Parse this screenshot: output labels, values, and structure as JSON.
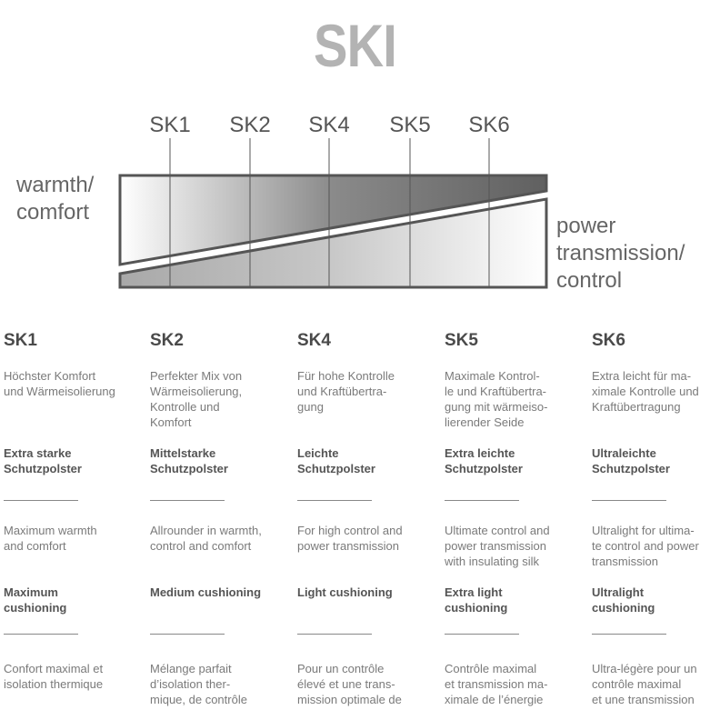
{
  "title": "SKI",
  "models": [
    "SK1",
    "SK2",
    "SK4",
    "SK5",
    "SK6"
  ],
  "left_label": "warmth/\ncomfort",
  "right_label": "power\ntransmission/\ncontrol",
  "colors": {
    "title": "#b3b3b3",
    "dark": "#666666",
    "light": "#ffffff"
  },
  "columns": [
    {
      "name": "SK1",
      "de": "Höchster Komfort\nund Wärmeisolierung",
      "de_cushion": "Extra starke\nSchutzpolster",
      "en": "Maximum warmth\nand comfort",
      "en_cushion": "Maximum\ncushioning",
      "fr": "Confort maximal et\nisolation thermique"
    },
    {
      "name": "SK2",
      "de": "Perfekter Mix von\nWärmeisolierung,\nKontrolle und\nKomfort",
      "de_cushion": "Mittelstarke\nSchutzpolster",
      "en": "Allrounder in warmth,\ncontrol and comfort",
      "en_cushion": "Medium cushioning",
      "fr": "Mélange parfait\nd’isolation ther-\nmique, de contrôle"
    },
    {
      "name": "SK4",
      "de": "Für hohe Kontrolle\nund Kraftübertra-\ngung",
      "de_cushion": "Leichte\nSchutzpolster",
      "en": "For high control and\npower transmission",
      "en_cushion": "Light cushioning",
      "fr": "Pour un contrôle\nélevé et une trans-\nmission optimale de"
    },
    {
      "name": "SK5",
      "de": "Maximale Kontrol-\nle und Kraftübertra-\ngung mit wärmeiso-\nlierender Seide",
      "de_cushion": "Extra leichte\nSchutzpolster",
      "en": "Ultimate control and\npower transmission\nwith insulating silk",
      "en_cushion": "Extra light\ncushioning",
      "fr": "Contrôle maximal\net transmission ma-\nximale de l’énergie"
    },
    {
      "name": "SK6",
      "de": "Extra leicht für ma-\nximale Kontrolle und\nKraftübertragung",
      "de_cushion": "Ultraleichte\nSchutzpolster",
      "en": "Ultralight for ultima-\nte control and power\ntransmission",
      "en_cushion": "Ultralight\ncushioning",
      "fr": "Ultra-légère pour un\ncontrôle maximal\net une transmission"
    }
  ]
}
